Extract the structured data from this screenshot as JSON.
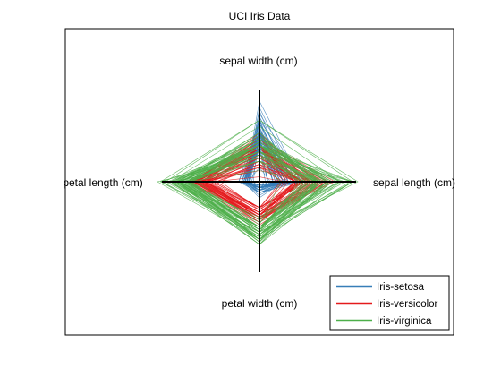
{
  "chart_data": {
    "type": "star-coordinates",
    "title": "UCI Iris Data",
    "axes": [
      {
        "name": "sepal length (cm)",
        "direction": "right",
        "min": 4.3,
        "max": 7.9
      },
      {
        "name": "sepal width (cm)",
        "direction": "up",
        "min": 2.0,
        "max": 4.4
      },
      {
        "name": "petal length (cm)",
        "direction": "left",
        "min": 1.0,
        "max": 6.9
      },
      {
        "name": "petal width (cm)",
        "direction": "down",
        "min": 0.1,
        "max": 2.5
      }
    ],
    "legend": {
      "position": "bottom-right"
    },
    "grid": false,
    "series": [
      {
        "name": "Iris-setosa",
        "color": "#377eb8",
        "points": [
          [
            5.1,
            3.5,
            1.4,
            0.2
          ],
          [
            4.9,
            3.0,
            1.4,
            0.2
          ],
          [
            4.7,
            3.2,
            1.3,
            0.2
          ],
          [
            4.6,
            3.1,
            1.5,
            0.2
          ],
          [
            5.0,
            3.6,
            1.4,
            0.2
          ],
          [
            5.4,
            3.9,
            1.7,
            0.4
          ],
          [
            4.6,
            3.4,
            1.4,
            0.3
          ],
          [
            5.0,
            3.4,
            1.5,
            0.2
          ],
          [
            4.4,
            2.9,
            1.4,
            0.2
          ],
          [
            4.9,
            3.1,
            1.5,
            0.1
          ],
          [
            5.4,
            3.7,
            1.5,
            0.2
          ],
          [
            4.8,
            3.4,
            1.6,
            0.2
          ],
          [
            4.8,
            3.0,
            1.4,
            0.1
          ],
          [
            4.3,
            3.0,
            1.1,
            0.1
          ],
          [
            5.8,
            4.0,
            1.2,
            0.2
          ],
          [
            5.7,
            4.4,
            1.5,
            0.4
          ],
          [
            5.4,
            3.9,
            1.3,
            0.4
          ],
          [
            5.1,
            3.5,
            1.4,
            0.3
          ],
          [
            5.7,
            3.8,
            1.7,
            0.3
          ],
          [
            5.1,
            3.8,
            1.5,
            0.3
          ],
          [
            5.4,
            3.4,
            1.7,
            0.2
          ],
          [
            5.1,
            3.7,
            1.5,
            0.4
          ],
          [
            4.6,
            3.6,
            1.0,
            0.2
          ],
          [
            5.1,
            3.3,
            1.7,
            0.5
          ],
          [
            4.8,
            3.4,
            1.9,
            0.2
          ],
          [
            5.0,
            3.0,
            1.6,
            0.2
          ],
          [
            5.0,
            3.4,
            1.6,
            0.4
          ],
          [
            5.2,
            3.5,
            1.5,
            0.2
          ],
          [
            5.2,
            3.4,
            1.4,
            0.2
          ],
          [
            4.7,
            3.2,
            1.6,
            0.2
          ],
          [
            4.8,
            3.1,
            1.6,
            0.2
          ],
          [
            5.4,
            3.4,
            1.5,
            0.4
          ],
          [
            5.2,
            4.1,
            1.5,
            0.1
          ],
          [
            5.5,
            4.2,
            1.4,
            0.2
          ],
          [
            4.9,
            3.1,
            1.5,
            0.1
          ],
          [
            5.0,
            3.2,
            1.2,
            0.2
          ],
          [
            5.5,
            3.5,
            1.3,
            0.2
          ],
          [
            4.9,
            3.1,
            1.5,
            0.1
          ],
          [
            4.4,
            3.0,
            1.3,
            0.2
          ],
          [
            5.1,
            3.4,
            1.5,
            0.2
          ],
          [
            5.0,
            3.5,
            1.3,
            0.3
          ],
          [
            4.5,
            2.3,
            1.3,
            0.3
          ],
          [
            4.4,
            3.2,
            1.3,
            0.2
          ],
          [
            5.0,
            3.5,
            1.6,
            0.6
          ],
          [
            5.1,
            3.8,
            1.9,
            0.4
          ],
          [
            4.8,
            3.0,
            1.4,
            0.3
          ],
          [
            5.1,
            3.8,
            1.6,
            0.2
          ],
          [
            4.6,
            3.2,
            1.4,
            0.2
          ],
          [
            5.3,
            3.7,
            1.5,
            0.2
          ],
          [
            5.0,
            3.3,
            1.4,
            0.2
          ]
        ]
      },
      {
        "name": "Iris-versicolor",
        "color": "#e41a1c",
        "points": [
          [
            7.0,
            3.2,
            4.7,
            1.4
          ],
          [
            6.4,
            3.2,
            4.5,
            1.5
          ],
          [
            6.9,
            3.1,
            4.9,
            1.5
          ],
          [
            5.5,
            2.3,
            4.0,
            1.3
          ],
          [
            6.5,
            2.8,
            4.6,
            1.5
          ],
          [
            5.7,
            2.8,
            4.5,
            1.3
          ],
          [
            6.3,
            3.3,
            4.7,
            1.6
          ],
          [
            4.9,
            2.4,
            3.3,
            1.0
          ],
          [
            6.6,
            2.9,
            4.6,
            1.3
          ],
          [
            5.2,
            2.7,
            3.9,
            1.4
          ],
          [
            5.0,
            2.0,
            3.5,
            1.0
          ],
          [
            5.9,
            3.0,
            4.2,
            1.5
          ],
          [
            6.0,
            2.2,
            4.0,
            1.0
          ],
          [
            6.1,
            2.9,
            4.7,
            1.4
          ],
          [
            5.6,
            2.9,
            3.6,
            1.3
          ],
          [
            6.7,
            3.1,
            4.4,
            1.4
          ],
          [
            5.6,
            3.0,
            4.5,
            1.5
          ],
          [
            5.8,
            2.7,
            4.1,
            1.0
          ],
          [
            6.2,
            2.2,
            4.5,
            1.5
          ],
          [
            5.6,
            2.5,
            3.9,
            1.1
          ],
          [
            5.9,
            3.2,
            4.8,
            1.8
          ],
          [
            6.1,
            2.8,
            4.0,
            1.3
          ],
          [
            6.3,
            2.5,
            4.9,
            1.5
          ],
          [
            6.1,
            2.8,
            4.7,
            1.2
          ],
          [
            6.4,
            2.9,
            4.3,
            1.3
          ],
          [
            6.6,
            3.0,
            4.4,
            1.4
          ],
          [
            6.8,
            2.8,
            4.8,
            1.4
          ],
          [
            6.7,
            3.0,
            5.0,
            1.7
          ],
          [
            6.0,
            2.9,
            4.5,
            1.5
          ],
          [
            5.7,
            2.6,
            3.5,
            1.0
          ],
          [
            5.5,
            2.4,
            3.8,
            1.1
          ],
          [
            5.5,
            2.4,
            3.7,
            1.0
          ],
          [
            5.8,
            2.7,
            3.9,
            1.2
          ],
          [
            6.0,
            2.7,
            5.1,
            1.6
          ],
          [
            5.4,
            3.0,
            4.5,
            1.5
          ],
          [
            6.0,
            3.4,
            4.5,
            1.6
          ],
          [
            6.7,
            3.1,
            4.7,
            1.5
          ],
          [
            6.3,
            2.3,
            4.4,
            1.3
          ],
          [
            5.6,
            3.0,
            4.1,
            1.3
          ],
          [
            5.5,
            2.5,
            4.0,
            1.3
          ],
          [
            5.5,
            2.6,
            4.4,
            1.2
          ],
          [
            6.1,
            3.0,
            4.6,
            1.4
          ],
          [
            5.8,
            2.6,
            4.0,
            1.2
          ],
          [
            5.0,
            2.3,
            3.3,
            1.0
          ],
          [
            5.6,
            2.7,
            4.2,
            1.3
          ],
          [
            5.7,
            3.0,
            4.2,
            1.2
          ],
          [
            5.7,
            2.9,
            4.2,
            1.3
          ],
          [
            6.2,
            2.9,
            4.3,
            1.3
          ],
          [
            5.1,
            2.5,
            3.0,
            1.1
          ],
          [
            5.7,
            2.8,
            4.1,
            1.3
          ]
        ]
      },
      {
        "name": "Iris-virginica",
        "color": "#4daf4a",
        "points": [
          [
            6.3,
            3.3,
            6.0,
            2.5
          ],
          [
            5.8,
            2.7,
            5.1,
            1.9
          ],
          [
            7.1,
            3.0,
            5.9,
            2.1
          ],
          [
            6.3,
            2.9,
            5.6,
            1.8
          ],
          [
            6.5,
            3.0,
            5.8,
            2.2
          ],
          [
            7.6,
            3.0,
            6.6,
            2.1
          ],
          [
            4.9,
            2.5,
            4.5,
            1.7
          ],
          [
            7.3,
            2.9,
            6.3,
            1.8
          ],
          [
            6.7,
            2.5,
            5.8,
            1.8
          ],
          [
            7.2,
            3.6,
            6.1,
            2.5
          ],
          [
            6.5,
            3.2,
            5.1,
            2.0
          ],
          [
            6.4,
            2.7,
            5.3,
            1.9
          ],
          [
            6.8,
            3.0,
            5.5,
            2.1
          ],
          [
            5.7,
            2.5,
            5.0,
            2.0
          ],
          [
            5.8,
            2.8,
            5.1,
            2.4
          ],
          [
            6.4,
            3.2,
            5.3,
            2.3
          ],
          [
            6.5,
            3.0,
            5.5,
            1.8
          ],
          [
            7.7,
            3.8,
            6.7,
            2.2
          ],
          [
            7.7,
            2.6,
            6.9,
            2.3
          ],
          [
            6.0,
            2.2,
            5.0,
            1.5
          ],
          [
            6.9,
            3.2,
            5.7,
            2.3
          ],
          [
            5.6,
            2.8,
            4.9,
            2.0
          ],
          [
            7.7,
            2.8,
            6.7,
            2.0
          ],
          [
            6.3,
            2.7,
            4.9,
            1.8
          ],
          [
            6.7,
            3.3,
            5.7,
            2.1
          ],
          [
            7.2,
            3.2,
            6.0,
            1.8
          ],
          [
            6.2,
            2.8,
            4.8,
            1.8
          ],
          [
            6.1,
            3.0,
            4.9,
            1.8
          ],
          [
            6.4,
            2.8,
            5.6,
            2.1
          ],
          [
            7.2,
            3.0,
            5.8,
            1.6
          ],
          [
            7.4,
            2.8,
            6.1,
            1.9
          ],
          [
            7.9,
            3.8,
            6.4,
            2.0
          ],
          [
            6.4,
            2.8,
            5.6,
            2.2
          ],
          [
            6.3,
            2.8,
            5.1,
            1.5
          ],
          [
            6.1,
            2.6,
            5.6,
            1.4
          ],
          [
            7.7,
            3.0,
            6.1,
            2.3
          ],
          [
            6.3,
            3.4,
            5.6,
            2.4
          ],
          [
            6.4,
            3.1,
            5.5,
            1.8
          ],
          [
            6.0,
            3.0,
            4.8,
            1.8
          ],
          [
            6.9,
            3.1,
            5.4,
            2.1
          ],
          [
            6.7,
            3.1,
            5.6,
            2.4
          ],
          [
            6.9,
            3.1,
            5.1,
            2.3
          ],
          [
            5.8,
            2.7,
            5.1,
            1.9
          ],
          [
            6.8,
            3.2,
            5.9,
            2.3
          ],
          [
            6.7,
            3.3,
            5.7,
            2.5
          ],
          [
            6.7,
            3.0,
            5.2,
            2.3
          ],
          [
            6.3,
            2.5,
            5.0,
            1.9
          ],
          [
            6.5,
            3.0,
            5.2,
            2.0
          ],
          [
            6.2,
            3.4,
            5.4,
            2.3
          ],
          [
            5.9,
            3.0,
            5.1,
            1.8
          ]
        ]
      }
    ]
  }
}
